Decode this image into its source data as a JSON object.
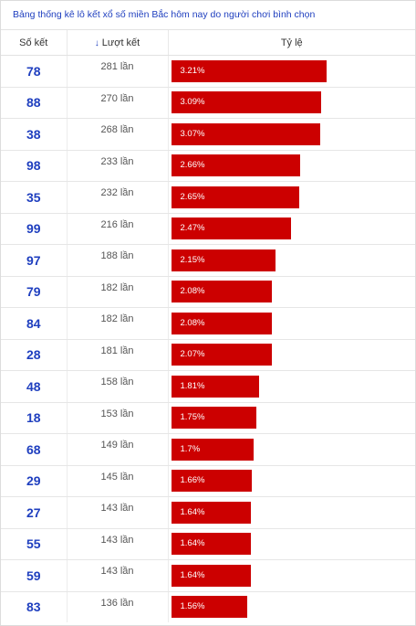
{
  "title": "Bảng thống kê lô kết xổ số miền Bắc hôm nay do người chơi bình chọn",
  "headers": {
    "number": "Số kết",
    "count": "Lượt kết",
    "ratio": "Tỷ lệ",
    "sort_icon": "arrow-down-icon"
  },
  "colors": {
    "bar": "#cc0000",
    "accent": "#1f3fbf"
  },
  "rows": [
    {
      "number": "78",
      "count": "281 lần",
      "ratio": "3.21%",
      "pct": 3.21
    },
    {
      "number": "88",
      "count": "270 lần",
      "ratio": "3.09%",
      "pct": 3.09
    },
    {
      "number": "38",
      "count": "268 lần",
      "ratio": "3.07%",
      "pct": 3.07
    },
    {
      "number": "98",
      "count": "233 lần",
      "ratio": "2.66%",
      "pct": 2.66
    },
    {
      "number": "35",
      "count": "232 lần",
      "ratio": "2.65%",
      "pct": 2.65
    },
    {
      "number": "99",
      "count": "216 lần",
      "ratio": "2.47%",
      "pct": 2.47
    },
    {
      "number": "97",
      "count": "188 lần",
      "ratio": "2.15%",
      "pct": 2.15
    },
    {
      "number": "79",
      "count": "182 lần",
      "ratio": "2.08%",
      "pct": 2.08
    },
    {
      "number": "84",
      "count": "182 lần",
      "ratio": "2.08%",
      "pct": 2.08
    },
    {
      "number": "28",
      "count": "181 lần",
      "ratio": "2.07%",
      "pct": 2.07
    },
    {
      "number": "48",
      "count": "158 lần",
      "ratio": "1.81%",
      "pct": 1.81
    },
    {
      "number": "18",
      "count": "153 lần",
      "ratio": "1.75%",
      "pct": 1.75
    },
    {
      "number": "68",
      "count": "149 lần",
      "ratio": "1.7%",
      "pct": 1.7
    },
    {
      "number": "29",
      "count": "145 lần",
      "ratio": "1.66%",
      "pct": 1.66
    },
    {
      "number": "27",
      "count": "143 lần",
      "ratio": "1.64%",
      "pct": 1.64
    },
    {
      "number": "55",
      "count": "143 lần",
      "ratio": "1.64%",
      "pct": 1.64
    },
    {
      "number": "59",
      "count": "143 lần",
      "ratio": "1.64%",
      "pct": 1.64
    },
    {
      "number": "83",
      "count": "136 lần",
      "ratio": "1.56%",
      "pct": 1.56
    }
  ]
}
